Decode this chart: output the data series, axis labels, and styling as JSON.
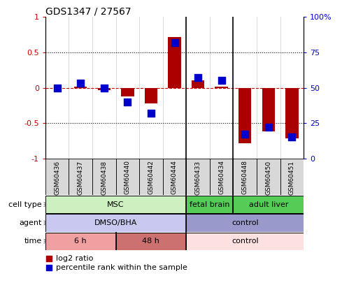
{
  "title": "GDS1347 / 27567",
  "samples": [
    "GSM60436",
    "GSM60437",
    "GSM60438",
    "GSM60440",
    "GSM60442",
    "GSM60444",
    "GSM60433",
    "GSM60434",
    "GSM60448",
    "GSM60450",
    "GSM60451"
  ],
  "log2_ratio": [
    0.0,
    0.02,
    -0.03,
    -0.12,
    -0.22,
    0.72,
    0.1,
    0.02,
    -0.78,
    -0.62,
    -0.72
  ],
  "percentile_rank": [
    50,
    53,
    50,
    40,
    32,
    82,
    57,
    55,
    17,
    22,
    15
  ],
  "cell_type_groups": [
    {
      "label": "MSC",
      "start": 0,
      "end": 5,
      "color": "#ccf0c0"
    },
    {
      "label": "fetal brain",
      "start": 6,
      "end": 7,
      "color": "#55cc55"
    },
    {
      "label": "adult liver",
      "start": 8,
      "end": 10,
      "color": "#55cc55"
    }
  ],
  "agent_groups": [
    {
      "label": "DMSO/BHA",
      "start": 0,
      "end": 5,
      "color": "#c8c8f0"
    },
    {
      "label": "control",
      "start": 6,
      "end": 10,
      "color": "#9999cc"
    }
  ],
  "time_groups": [
    {
      "label": "6 h",
      "start": 0,
      "end": 2,
      "color": "#f0a0a0"
    },
    {
      "label": "48 h",
      "start": 3,
      "end": 5,
      "color": "#cc7070"
    },
    {
      "label": "control",
      "start": 6,
      "end": 10,
      "color": "#fde0e0"
    }
  ],
  "bar_color": "#aa0000",
  "dot_color": "#0000cc",
  "bar_width": 0.55,
  "dot_size": 45,
  "ylim": [
    -1,
    1
  ],
  "y2lim": [
    0,
    100
  ],
  "yticks": [
    -1,
    -0.5,
    0,
    0.5,
    1
  ],
  "ytick_labels": [
    "-1",
    "-0.5",
    "0",
    "0.5",
    "1"
  ],
  "y2ticks": [
    0,
    25,
    50,
    75,
    100
  ],
  "y2ticklabels": [
    "0",
    "25",
    "50",
    "75",
    "100%"
  ],
  "dotted_lines": [
    -0.5,
    0.5
  ],
  "group_separators": [
    5.5,
    7.5
  ],
  "legend_items": [
    {
      "label": "log2 ratio",
      "color": "#aa0000"
    },
    {
      "label": "percentile rank within the sample",
      "color": "#0000cc"
    }
  ],
  "row_labels": [
    "cell type",
    "agent",
    "time"
  ],
  "tick_box_color": "#d8d8d8",
  "background_color": "#ffffff"
}
